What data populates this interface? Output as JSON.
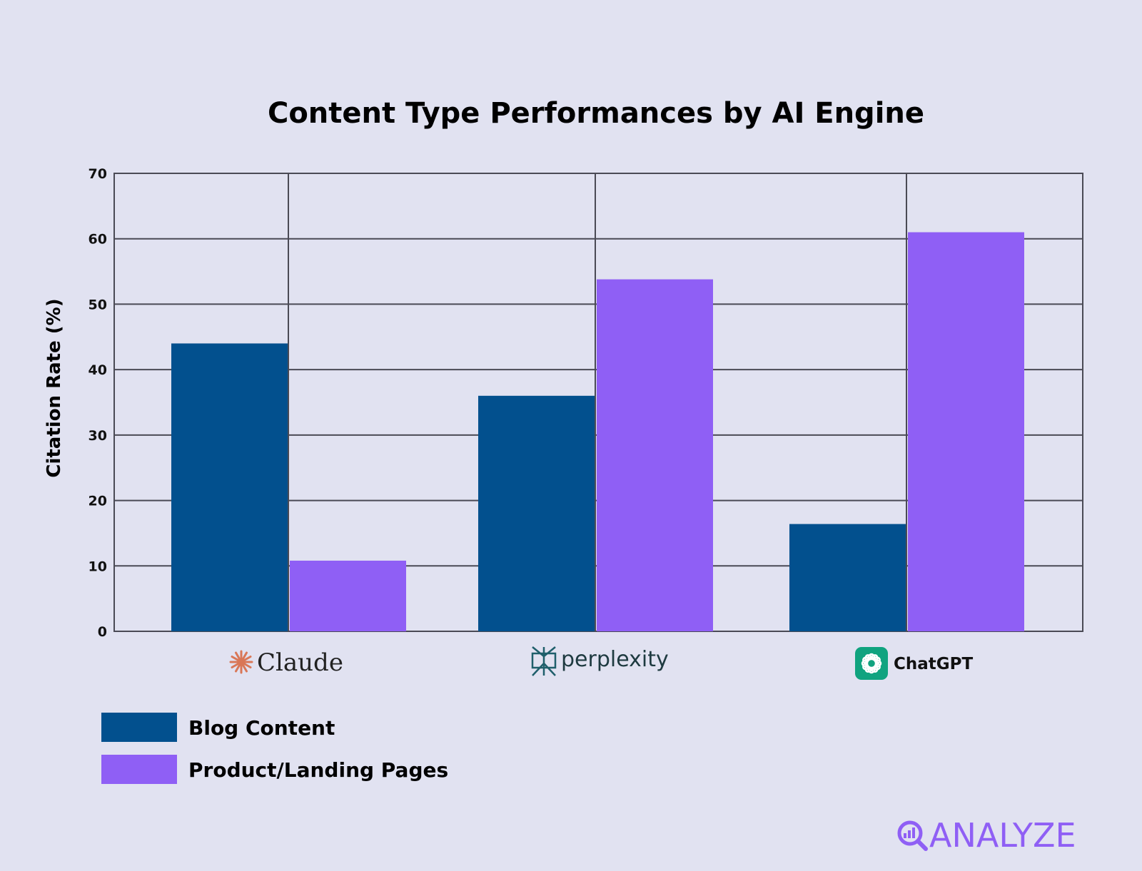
{
  "chart_data": {
    "type": "bar",
    "title": "Content Type Performances by AI Engine",
    "xlabel": "",
    "ylabel": "Citation Rate (%)",
    "ylim": [
      0,
      70
    ],
    "yticks": [
      0,
      10,
      20,
      30,
      40,
      50,
      60,
      70
    ],
    "grid": true,
    "legend_position": "bottom-left",
    "categories": [
      "Claude",
      "perplexity",
      "ChatGPT"
    ],
    "category_logos": [
      "claude-logo-icon",
      "perplexity-logo-icon",
      "chatgpt-logo-icon"
    ],
    "series": [
      {
        "name": "Blog Content",
        "values": [
          44,
          36,
          16.4
        ],
        "color": "#02508e"
      },
      {
        "name": "Product/Landing Pages",
        "values": [
          10.8,
          53.8,
          61
        ],
        "color": "#8f5ff5"
      }
    ]
  },
  "branding": {
    "logo_text": "ANALYZE",
    "color": "#8f5ff5"
  },
  "colors": {
    "background": "#e1e2f1",
    "grid": "#4a4a55",
    "claude": "#d97757",
    "perplexity": "#1f5f6b",
    "chatgpt": "#10a37f"
  }
}
